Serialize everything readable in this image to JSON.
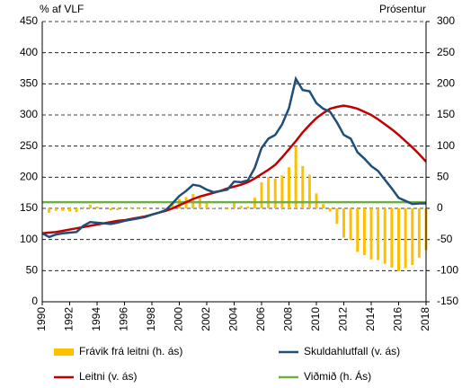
{
  "chart_data": {
    "type": "combo",
    "y_label": "% af VLF",
    "y2_label": "Prósentur",
    "x": [
      1990,
      1990.5,
      1991,
      1991.5,
      1992,
      1992.5,
      1993,
      1993.5,
      1994,
      1994.5,
      1995,
      1995.5,
      1996,
      1996.5,
      1997,
      1997.5,
      1998,
      1998.5,
      1999,
      1999.5,
      2000,
      2000.5,
      2001,
      2001.5,
      2002,
      2002.5,
      2003,
      2003.5,
      2004,
      2004.5,
      2005,
      2005.5,
      2006,
      2006.5,
      2007,
      2007.5,
      2008,
      2008.5,
      2009,
      2009.5,
      2010,
      2010.5,
      2011,
      2011.5,
      2012,
      2012.5,
      2013,
      2013.5,
      2014,
      2014.5,
      2015,
      2015.5,
      2016,
      2016.5,
      2017,
      2017.5,
      2018
    ],
    "series": [
      {
        "name": "Frávik frá leitni (h. ás)",
        "type": "bar",
        "axis": "y2",
        "color": "#ffc000",
        "values": [
          0,
          -7,
          -4,
          -4,
          -5,
          -6,
          2,
          6,
          3,
          0,
          -3,
          -3,
          -1,
          -1,
          -1,
          -1,
          0,
          0,
          1,
          8,
          15,
          18,
          23,
          17,
          8,
          1,
          0,
          -2,
          8,
          4,
          3,
          17,
          42,
          50,
          48,
          53,
          66,
          100,
          68,
          54,
          24,
          7,
          -5,
          -25,
          -47,
          -51,
          -70,
          -75,
          -82,
          -83,
          -89,
          -95,
          -101,
          -96,
          -91,
          -79,
          -67
        ]
      },
      {
        "name": "Skuldahlutfall (v. ás)",
        "type": "line",
        "color": "#1f4e79",
        "values": [
          110,
          104,
          108,
          110,
          111,
          112,
          122,
          128,
          127,
          126,
          125,
          127,
          130,
          132,
          134,
          136,
          140,
          143,
          147,
          158,
          170,
          178,
          188,
          186,
          180,
          176,
          178,
          180,
          193,
          192,
          195,
          215,
          247,
          262,
          268,
          285,
          311,
          358,
          340,
          338,
          319,
          310,
          305,
          288,
          268,
          262,
          240,
          230,
          218,
          210,
          196,
          182,
          167,
          162,
          157,
          158,
          158
        ]
      },
      {
        "name": "Leitni (v. ás)",
        "type": "line",
        "color": "#c00000",
        "values": [
          110,
          111,
          112,
          114,
          116,
          118,
          120,
          122,
          124,
          126,
          128,
          130,
          131,
          133,
          135,
          137,
          140,
          143,
          146,
          150,
          155,
          160,
          165,
          169,
          172,
          175,
          178,
          182,
          185,
          188,
          192,
          198,
          205,
          212,
          220,
          232,
          245,
          258,
          272,
          284,
          295,
          303,
          310,
          313,
          315,
          313,
          310,
          305,
          300,
          293,
          285,
          277,
          268,
          258,
          248,
          237,
          225
        ]
      },
      {
        "name": "Viðmið (h. Ás)",
        "type": "line",
        "axis": "y2",
        "color": "#70ad47",
        "values": [
          10,
          10,
          10,
          10,
          10,
          10,
          10,
          10,
          10,
          10,
          10,
          10,
          10,
          10,
          10,
          10,
          10,
          10,
          10,
          10,
          10,
          10,
          10,
          10,
          10,
          10,
          10,
          10,
          10,
          10,
          10,
          10,
          10,
          10,
          10,
          10,
          10,
          10,
          10,
          10,
          10,
          10,
          10,
          10,
          10,
          10,
          10,
          10,
          10,
          10,
          10,
          10,
          10,
          10,
          10,
          10,
          10
        ]
      }
    ],
    "xlim": [
      1990,
      2018
    ],
    "xticks": [
      1990,
      1992,
      1994,
      1996,
      1998,
      2000,
      2002,
      2004,
      2006,
      2008,
      2010,
      2012,
      2014,
      2016,
      2018
    ],
    "ylim": [
      0,
      450
    ],
    "yticks": [
      0,
      50,
      100,
      150,
      200,
      250,
      300,
      350,
      400,
      450
    ],
    "y2lim": [
      -150,
      300
    ],
    "y2ticks": [
      -150,
      -100,
      -50,
      0,
      50,
      100,
      150,
      200,
      250,
      300
    ],
    "grid": true
  }
}
